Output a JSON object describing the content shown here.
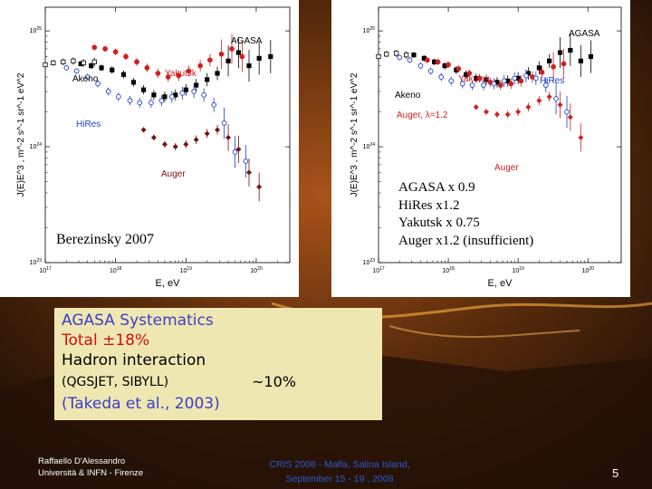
{
  "chart_data": [
    {
      "type": "scatter",
      "xlabel": "E, eV",
      "ylabel": "J(E)E^3 , m^-2 s^-1 sr^-1 eV^2",
      "xscale": "log",
      "yscale": "log",
      "xlim": [
        1e+17,
        3e+20
      ],
      "ylim": [
        1e+23,
        1.6e+25
      ],
      "x_tick_labels": [
        "10^17",
        "10^18",
        "10^19",
        "10^20"
      ],
      "y_tick_labels": [
        "10^23",
        "10^24",
        "10^25"
      ],
      "series": [
        {
          "name": "AGASA",
          "color": "#000000",
          "x": [
            3.2e+17,
            4.5e+17,
            6.3e+17,
            8.9e+17,
            1.3e+18,
            1.8e+18,
            2.5e+18,
            3.5e+18,
            5e+18,
            7.1e+18,
            1e+19,
            1.4e+19,
            2e+19,
            2.8e+19,
            4e+19,
            5.6e+19,
            7.9e+19,
            1.1e+20,
            1.6e+20
          ],
          "y": [
            5.2e+24,
            5e+24,
            4.8e+24,
            4.6e+24,
            4.2e+24,
            3.6e+24,
            3.1e+24,
            2.8e+24,
            2.7e+24,
            2.8e+24,
            3.1e+24,
            3.4e+24,
            3.8e+24,
            4.3e+24,
            5.5e+24,
            6.5e+24,
            5e+24,
            5.8e+24,
            6e+24
          ]
        },
        {
          "name": "Akeno",
          "color": "#000000",
          "x": [
            1e+17,
            1.3e+17,
            1.8e+17,
            2.5e+17,
            3.5e+17,
            5e+17
          ],
          "y": [
            5.1e+24,
            5.3e+24,
            5.4e+24,
            5.5e+24,
            5.3e+24,
            5.4e+24
          ]
        },
        {
          "name": "Yakutsk",
          "color": "#d02020",
          "x": [
            5e+17,
            7.1e+17,
            1e+18,
            1.4e+18,
            2e+18,
            2.8e+18,
            4e+18,
            5.6e+18,
            7.9e+18,
            1.1e+19,
            1.6e+19,
            2.2e+19,
            3.2e+19,
            4.5e+19,
            6.3e+19
          ],
          "y": [
            7.2e+24,
            7e+24,
            6.6e+24,
            6e+24,
            5.4e+24,
            4.8e+24,
            4.3e+24,
            4e+24,
            4.1e+24,
            4.5e+24,
            5e+24,
            5.6e+24,
            6.3e+24,
            7e+24,
            6e+24
          ]
        },
        {
          "name": "HiRes",
          "color": "#1f3fd0",
          "x": [
            2e+17,
            2.8e+17,
            4e+17,
            5.6e+17,
            7.9e+17,
            1.1e+18,
            1.6e+18,
            2.2e+18,
            3.2e+18,
            4.5e+18,
            6.3e+18,
            8.9e+18,
            1.3e+19,
            1.8e+19,
            2.5e+19,
            3.5e+19,
            5e+19,
            7.1e+19
          ],
          "y": [
            4.8e+24,
            4.5e+24,
            4e+24,
            3.5e+24,
            3e+24,
            2.7e+24,
            2.5e+24,
            2.4e+24,
            2.4e+24,
            2.5e+24,
            2.7e+24,
            2.9e+24,
            3e+24,
            2.8e+24,
            2.3e+24,
            1.6e+24,
            9e+23,
            7.5e+23
          ]
        },
        {
          "name": "Auger",
          "color": "#7a1212",
          "x": [
            2.5e+18,
            3.5e+18,
            5e+18,
            7.1e+18,
            1e+19,
            1.4e+19,
            2e+19,
            2.8e+19,
            4e+19,
            5.6e+19,
            7.9e+19,
            1.1e+20
          ],
          "y": [
            1.4e+24,
            1.2e+24,
            1.05e+24,
            1e+24,
            1.05e+24,
            1.15e+24,
            1.3e+24,
            1.4e+24,
            1.2e+24,
            9.5e+23,
            6e+23,
            4.5e+23
          ]
        }
      ],
      "labels": {
        "agasa": "AGASA",
        "akeno": "Akeno",
        "yakutsk": "Yakutsk",
        "hires": "HiRes",
        "auger": "Auger"
      },
      "annotation": "Berezinsky 2007"
    },
    {
      "type": "scatter",
      "xlabel": "E, eV",
      "ylabel": "J(E)E^3 , m^-2 s^-1 sr^-1 eV^2",
      "xscale": "log",
      "yscale": "log",
      "xlim": [
        1e+17,
        3e+20
      ],
      "ylim": [
        1e+23,
        1.6e+25
      ],
      "x_tick_labels": [
        "10^17",
        "10^18",
        "10^19",
        "10^20"
      ],
      "y_tick_labels": [
        "10^23",
        "10^24",
        "10^25"
      ],
      "series": [
        {
          "name": "AGASA",
          "color": "#000000",
          "x": [
            3.2e+17,
            4.5e+17,
            6.3e+17,
            8.9e+17,
            1.3e+18,
            1.8e+18,
            2.5e+18,
            3.5e+18,
            5e+18,
            7.1e+18,
            1e+19,
            1.4e+19,
            2e+19,
            2.8e+19,
            4e+19,
            5.6e+19,
            7.9e+19,
            1.1e+20
          ],
          "y": [
            6.2e+24,
            5.8e+24,
            5.4e+24,
            5e+24,
            4.6e+24,
            4.2e+24,
            3.9e+24,
            3.8e+24,
            3.6e+24,
            3.7e+24,
            3.9e+24,
            4.3e+24,
            4.8e+24,
            5.5e+24,
            6.5e+24,
            6.8e+24,
            5.5e+24,
            6e+24
          ]
        },
        {
          "name": "Akeno",
          "color": "#000000",
          "x": [
            1e+17,
            1.3e+17,
            1.8e+17,
            2.5e+17
          ],
          "y": [
            6e+24,
            6.3e+24,
            6.4e+24,
            6.2e+24
          ]
        },
        {
          "name": "Yakutsk",
          "color": "#d02020",
          "x": [
            5e+17,
            7.1e+17,
            1e+18,
            1.4e+18,
            2e+18,
            2.8e+18,
            4e+18,
            5.6e+18,
            7.9e+18,
            1.1e+19,
            1.6e+19,
            2.2e+19,
            3.2e+19,
            4.5e+19
          ],
          "y": [
            5.6e+24,
            5.4e+24,
            5.1e+24,
            4.7e+24,
            4.3e+24,
            3.9e+24,
            3.6e+24,
            3.4e+24,
            3.5e+24,
            3.7e+24,
            4e+24,
            4.4e+24,
            4.9e+24,
            5.2e+24
          ]
        },
        {
          "name": "HiRes",
          "color": "#1f3fd0",
          "x": [
            2e+17,
            2.8e+17,
            4e+17,
            5.6e+17,
            7.9e+17,
            1.1e+18,
            1.6e+18,
            2.2e+18,
            3.2e+18,
            4.5e+18,
            6.3e+18,
            8.9e+18,
            1.3e+19,
            1.8e+19,
            2.5e+19,
            3.5e+19,
            5e+19
          ],
          "y": [
            5.9e+24,
            5.6e+24,
            5e+24,
            4.5e+24,
            4e+24,
            3.7e+24,
            3.5e+24,
            3.4e+24,
            3.4e+24,
            3.5e+24,
            3.7e+24,
            3.9e+24,
            4.1e+24,
            3.9e+24,
            3.4e+24,
            2.6e+24,
            2e+24
          ]
        },
        {
          "name": "Auger, λ=1.2",
          "color": "#d02020",
          "x": [
            2.5e+18,
            3.5e+18,
            5e+18,
            7.1e+18,
            1e+19,
            1.4e+19,
            2e+19,
            2.8e+19,
            4e+19,
            5.6e+19,
            7.9e+19
          ],
          "y": [
            2.2e+24,
            2e+24,
            1.9e+24,
            1.9e+24,
            2e+24,
            2.2e+24,
            2.5e+24,
            2.7e+24,
            2.3e+24,
            1.8e+24,
            1.2e+24
          ]
        }
      ],
      "labels": {
        "agasa": "AGASA",
        "akeno": "Akeno",
        "yakutsk": "Yakutsk",
        "hires": "HiRes",
        "auger": "Auger",
        "auger_lambda": "Auger, λ=1.2"
      },
      "annotations": [
        "AGASA x 0.9",
        "HiRes x1.2",
        "Yakutsk x 0.75",
        "Auger x1.2 (insufficient)"
      ]
    }
  ],
  "info_box": {
    "line1": "AGASA Systematics",
    "line2": "Total ±18%",
    "line3": "Hadron interaction",
    "line4a": "(QGSJET, SIBYLL)",
    "line4b": "~10%",
    "line5": "(Takeda et al., 2003)",
    "accent_color": "#d01010",
    "highlight_color": "#3b3ec8"
  },
  "footer": {
    "author_line1": "Raffaello D'Alessandro",
    "author_line2": "Università & INFN - Firenze",
    "conf_line1": "CRIS 2008 -    Malfa, Salina Island,",
    "conf_line2": "September 15 - 19 , 2008",
    "page_number": "5"
  }
}
